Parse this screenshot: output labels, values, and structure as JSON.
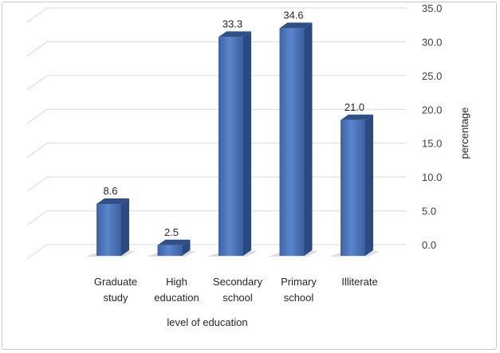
{
  "chart_data": {
    "type": "bar",
    "categories": [
      [
        "Graduate",
        "study"
      ],
      [
        "High",
        "education"
      ],
      [
        "Secondary",
        "school"
      ],
      [
        "Primary",
        "school"
      ],
      [
        "Illiterate"
      ]
    ],
    "values": [
      8.6,
      2.5,
      33.3,
      34.6,
      21.0
    ],
    "data_labels": [
      "8.6",
      "2.5",
      "33.3",
      "34.6",
      "21.0"
    ],
    "xlabel": "level of education",
    "ylabel": "percentage",
    "ylim": [
      0,
      35
    ],
    "yticks": [
      "0.0",
      "5.0",
      "10.0",
      "15.0",
      "20.0",
      "25.0",
      "30.0",
      "35.0"
    ],
    "y_axis_position": "right",
    "grid": true,
    "bar_color": "#4a72b8",
    "style": "3d-column"
  }
}
